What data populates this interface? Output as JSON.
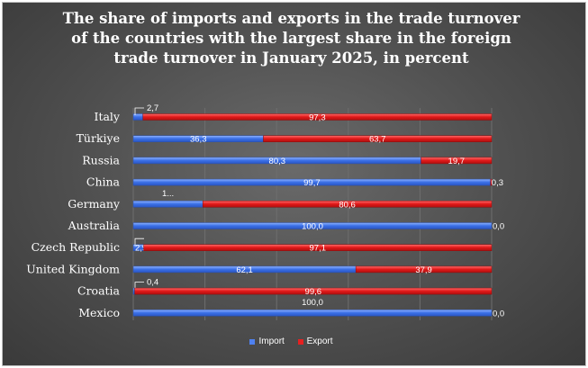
{
  "chart_data": {
    "type": "bar",
    "orientation": "horizontal",
    "stacked": "percent",
    "title": "The share of imports and exports in the trade turnover of the countries with the largest share in the foreign trade turnover in January 2025, in percent",
    "categories": [
      "Italy",
      "Türkiye",
      "Russia",
      "China",
      "Germany",
      "Australia",
      "Czech Republic",
      "United Kingdom",
      "Croatia",
      "Mexico"
    ],
    "series": [
      {
        "name": "Import",
        "values": [
          2.7,
          36.3,
          80.3,
          99.7,
          19.4,
          100.0,
          2.9,
          62.1,
          0.4,
          100.0
        ],
        "labels": [
          "2,7",
          "36,3",
          "80,3",
          "99,7",
          "1...",
          "100,0",
          "2,9",
          "62,1",
          "0,4",
          "100,0"
        ],
        "color": "#4f81f0"
      },
      {
        "name": "Export",
        "values": [
          97.3,
          63.7,
          19.7,
          0.3,
          80.6,
          0.0,
          97.1,
          37.9,
          99.6,
          0.0
        ],
        "labels": [
          "97,3",
          "63,7",
          "19,7",
          "0,3",
          "80,6",
          "0,0",
          "97,1",
          "37,9",
          "99,6",
          "0,0"
        ],
        "color": "#e62020"
      }
    ],
    "xlim": [
      0,
      100
    ],
    "grid": true,
    "legend_position": "bottom"
  }
}
